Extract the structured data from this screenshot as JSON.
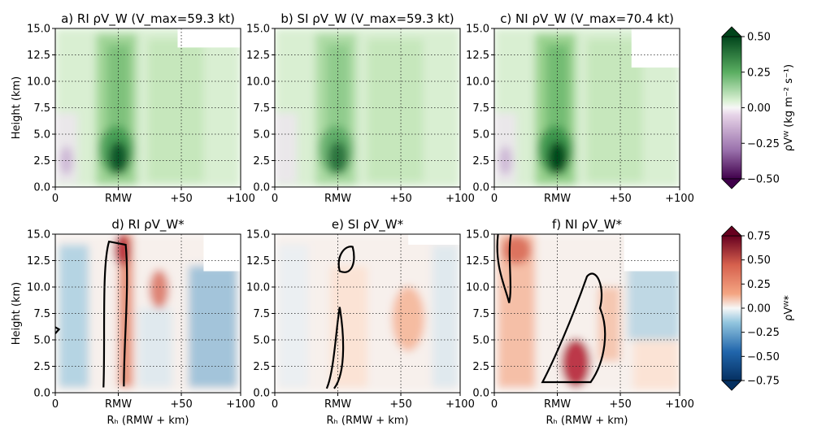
{
  "figure": {
    "shared_y_label": "Height (km)",
    "shared_x_label": "R_H (RMW + km)",
    "x_ticks": [
      "0",
      "RMW",
      "+50",
      "+100"
    ],
    "y_ticks": [
      "0.0",
      "2.5",
      "5.0",
      "7.5",
      "10.0",
      "12.5",
      "15.0"
    ]
  },
  "colorbars": [
    {
      "id": "mean",
      "cmap": "Purple-Green diverging",
      "range": [
        -0.5,
        0.5
      ],
      "ticks": [
        "0.50",
        "0.25",
        "0.00",
        "−0.25",
        "−0.50"
      ],
      "label": "ρV̅_W (kg m⁻² s⁻¹)",
      "colors": {
        "neg": "#40004b",
        "mid": "#f7f7f7",
        "pos": "#00441b"
      }
    },
    {
      "id": "anom",
      "cmap": "Red-Blue diverging",
      "range": [
        -0.75,
        0.75
      ],
      "ticks": [
        "0.75",
        "0.50",
        "0.25",
        "0.00",
        "−0.25",
        "−0.50",
        "−0.75"
      ],
      "label": "ρV̅_W*",
      "colors": {
        "neg": "#053061",
        "mid": "#f7f7f7",
        "pos": "#67001f"
      }
    }
  ],
  "chart_data": [
    {
      "type": "heatmap",
      "panel": "a",
      "group": "RI",
      "title": "a) RI ρV̅_W (V_max=59.3 kt)",
      "x_axis": "R_H (RMW + km)",
      "y_axis": "Height (km)",
      "xlim_label": [
        "0",
        "+100"
      ],
      "ylim": [
        0,
        15
      ],
      "colorbar": "mean",
      "peak_value": 0.45,
      "peak_height_km": 2.8,
      "grid": true
    },
    {
      "type": "heatmap",
      "panel": "b",
      "group": "SI",
      "title": "b) SI ρV̅_W (V_max=59.3 kt)",
      "ylim": [
        0,
        15
      ],
      "colorbar": "mean",
      "peak_value": 0.3,
      "peak_height_km": 3.5,
      "grid": true
    },
    {
      "type": "heatmap",
      "panel": "c",
      "group": "NI",
      "title": "c) NI ρV̅_W (V_max=70.4 kt)",
      "ylim": [
        0,
        15
      ],
      "colorbar": "mean",
      "peak_value": 0.5,
      "peak_height_km": 2.5,
      "grid": true
    },
    {
      "type": "heatmap",
      "panel": "d",
      "group": "RI",
      "title": "d) RI ρV̅_W*",
      "ylim": [
        0,
        15
      ],
      "colorbar": "anom",
      "contour": "black outline of positive anomaly column near RMW",
      "grid": true
    },
    {
      "type": "heatmap",
      "panel": "e",
      "group": "SI",
      "title": "e) SI ρV̅_W*",
      "ylim": [
        0,
        15
      ],
      "colorbar": "anom",
      "contour": "black outlines near RMW",
      "grid": true
    },
    {
      "type": "heatmap",
      "panel": "f",
      "group": "NI",
      "title": "f) NI ρV̅_W*",
      "ylim": [
        0,
        15
      ],
      "colorbar": "anom",
      "contour": "black outline of tilted positive anomaly",
      "grid": true
    }
  ]
}
